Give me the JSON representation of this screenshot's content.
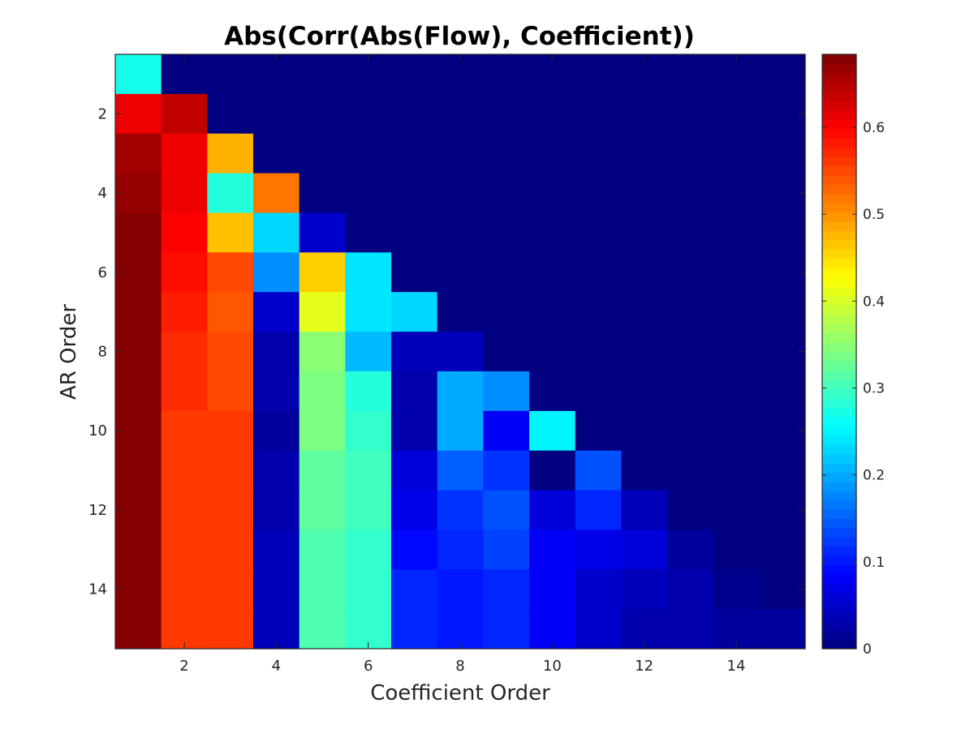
{
  "chart_data": {
    "type": "heatmap",
    "title": "Abs(Corr(Abs(Flow), Coefficient))",
    "xlabel": "Coefficient Order",
    "ylabel": "AR Order",
    "x_ticks": [
      "2",
      "4",
      "6",
      "8",
      "10",
      "12",
      "14"
    ],
    "y_ticks": [
      "2",
      "4",
      "6",
      "8",
      "10",
      "12",
      "14"
    ],
    "colorbar": {
      "colormap": "jet",
      "range": [
        0,
        0.684
      ],
      "ticks": [
        "0",
        "0.1",
        "0.2",
        "0.3",
        "0.4",
        "0.5",
        "0.6"
      ]
    },
    "rows": 15,
    "cols": 15,
    "note_masked": "cells with column index > row index are 0",
    "values": [
      [
        0.27,
        0,
        0,
        0,
        0,
        0,
        0,
        0,
        0,
        0,
        0,
        0,
        0,
        0,
        0
      ],
      [
        0.61,
        0.64,
        0,
        0,
        0,
        0,
        0,
        0,
        0,
        0,
        0,
        0,
        0,
        0,
        0
      ],
      [
        0.66,
        0.61,
        0.48,
        0,
        0,
        0,
        0,
        0,
        0,
        0,
        0,
        0,
        0,
        0,
        0
      ],
      [
        0.67,
        0.61,
        0.28,
        0.52,
        0,
        0,
        0,
        0,
        0,
        0,
        0,
        0,
        0,
        0,
        0
      ],
      [
        0.68,
        0.6,
        0.47,
        0.23,
        0.05,
        0,
        0,
        0,
        0,
        0,
        0,
        0,
        0,
        0,
        0
      ],
      [
        0.68,
        0.59,
        0.55,
        0.18,
        0.46,
        0.24,
        0,
        0,
        0,
        0,
        0,
        0,
        0,
        0,
        0
      ],
      [
        0.68,
        0.58,
        0.54,
        0.05,
        0.41,
        0.24,
        0.23,
        0,
        0,
        0,
        0,
        0,
        0,
        0,
        0
      ],
      [
        0.68,
        0.57,
        0.55,
        0.03,
        0.35,
        0.21,
        0.04,
        0.04,
        0,
        0,
        0,
        0,
        0,
        0,
        0
      ],
      [
        0.68,
        0.57,
        0.55,
        0.03,
        0.34,
        0.28,
        0.03,
        0.2,
        0.18,
        0,
        0,
        0,
        0,
        0,
        0
      ],
      [
        0.68,
        0.56,
        0.56,
        0.02,
        0.34,
        0.29,
        0.03,
        0.2,
        0.08,
        0.25,
        0,
        0,
        0,
        0,
        0
      ],
      [
        0.68,
        0.56,
        0.56,
        0.03,
        0.32,
        0.3,
        0.06,
        0.15,
        0.12,
        0.0,
        0.14,
        0,
        0,
        0,
        0
      ],
      [
        0.68,
        0.56,
        0.56,
        0.03,
        0.32,
        0.3,
        0.07,
        0.12,
        0.14,
        0.06,
        0.11,
        0.04,
        0,
        0,
        0
      ],
      [
        0.68,
        0.56,
        0.56,
        0.04,
        0.31,
        0.29,
        0.09,
        0.11,
        0.13,
        0.08,
        0.07,
        0.06,
        0.02,
        0,
        0
      ],
      [
        0.68,
        0.56,
        0.56,
        0.04,
        0.31,
        0.29,
        0.11,
        0.1,
        0.11,
        0.08,
        0.05,
        0.04,
        0.03,
        0.01,
        0
      ],
      [
        0.68,
        0.56,
        0.56,
        0.04,
        0.31,
        0.29,
        0.11,
        0.1,
        0.11,
        0.08,
        0.05,
        0.03,
        0.03,
        0.02,
        0.02
      ]
    ]
  }
}
